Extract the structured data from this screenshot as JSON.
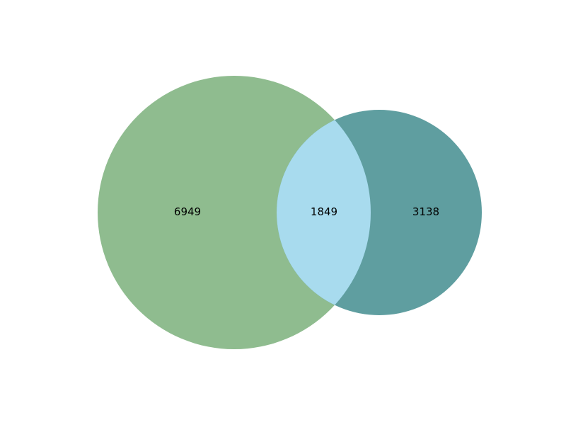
{
  "chart_data": {
    "type": "venn",
    "sets": [
      {
        "id": "A",
        "size": 8798,
        "color": "#8fbc8f"
      },
      {
        "id": "B",
        "size": 4987,
        "color": "#5f9ea0"
      }
    ],
    "regions": [
      {
        "sets": [
          "A"
        ],
        "value": 6949,
        "label": "6949"
      },
      {
        "sets": [
          "A",
          "B"
        ],
        "value": 1849,
        "label": "1849",
        "color": "#a8dbee"
      },
      {
        "sets": [
          "B"
        ],
        "value": 3138,
        "label": "3138"
      }
    ]
  }
}
